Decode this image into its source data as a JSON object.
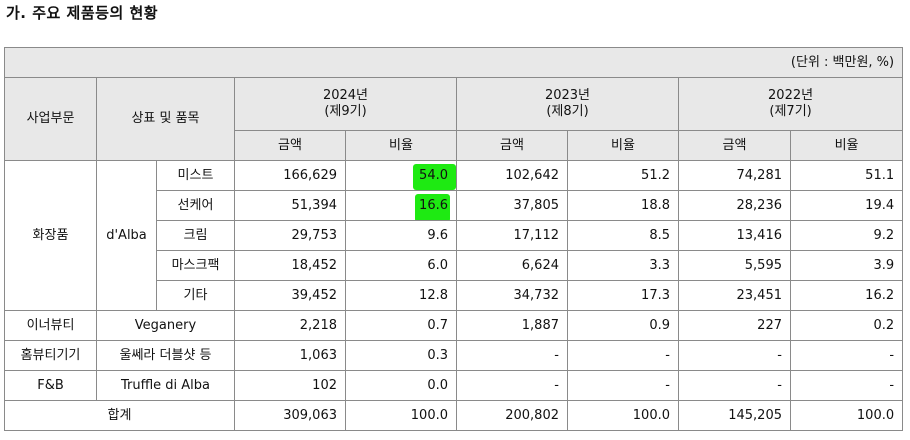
{
  "section_title": "가. 주요 제품등의 현황",
  "unit_note": "(단위 : 백만원, %)",
  "headers": {
    "division": "사업부문",
    "brand": "상표 및 품목",
    "years": [
      {
        "year": "2024년",
        "period": "(제9기)"
      },
      {
        "year": "2023년",
        "period": "(제8기)"
      },
      {
        "year": "2022년",
        "period": "(제7기)"
      }
    ],
    "amount": "금액",
    "ratio": "비율"
  },
  "cosmetics": {
    "division": "화장품",
    "brand": "d'Alba",
    "rows": [
      {
        "item": "미스트",
        "a24": "166,629",
        "r24": "54.0",
        "a23": "102,642",
        "r23": "51.2",
        "a22": "74,281",
        "r22": "51.1"
      },
      {
        "item": "선케어",
        "a24": "51,394",
        "r24": "16.6",
        "a23": "37,805",
        "r23": "18.8",
        "a22": "28,236",
        "r22": "19.4"
      },
      {
        "item": "크림",
        "a24": "29,753",
        "r24": "9.6",
        "a23": "17,112",
        "r23": "8.5",
        "a22": "13,416",
        "r22": "9.2"
      },
      {
        "item": "마스크팩",
        "a24": "18,452",
        "r24": "6.0",
        "a23": "6,624",
        "r23": "3.3",
        "a22": "5,595",
        "r22": "3.9"
      },
      {
        "item": "기타",
        "a24": "39,452",
        "r24": "12.8",
        "a23": "34,732",
        "r23": "17.3",
        "a22": "23,451",
        "r22": "16.2"
      }
    ]
  },
  "other_rows": [
    {
      "division": "이너뷰티",
      "brand": "Veganery",
      "a24": "2,218",
      "r24": "0.7",
      "a23": "1,887",
      "r23": "0.9",
      "a22": "227",
      "r22": "0.2"
    },
    {
      "division": "홈뷰티기기",
      "brand": "울쎄라 더블샷 등",
      "a24": "1,063",
      "r24": "0.3",
      "a23": "-",
      "r23": "-",
      "a22": "-",
      "r22": "-"
    },
    {
      "division": "F&B",
      "brand": "Truffle di Alba",
      "a24": "102",
      "r24": "0.0",
      "a23": "-",
      "r23": "-",
      "a22": "-",
      "r22": "-"
    }
  ],
  "total": {
    "label": "합계",
    "a24": "309,063",
    "r24": "100.0",
    "a23": "200,802",
    "r23": "100.0",
    "a22": "145,205",
    "r22": "100.0"
  },
  "highlight_color": "#1eea12"
}
